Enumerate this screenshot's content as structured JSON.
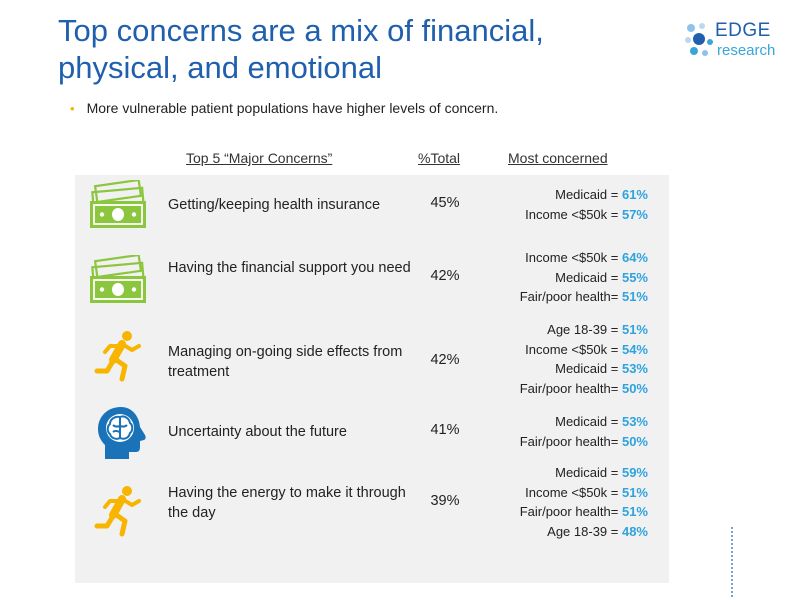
{
  "header": {
    "title_line1": "Top concerns are a mix of financial,",
    "title_line2": "physical, and emotional"
  },
  "logo": {
    "line1": "EDGE",
    "line2": "research"
  },
  "bullet": "More vulnerable patient populations have higher levels of concern.",
  "table": {
    "col_concerns": "Top 5 “Major Concerns”",
    "col_total": "%Total",
    "col_most": "Most concerned",
    "rows": [
      {
        "icon": "money-icon",
        "label": "Getting/keeping health insurance",
        "total": "45%",
        "most": [
          {
            "group": "Medicaid = ",
            "value": "61%"
          },
          {
            "group": "Income <$50k = ",
            "value": "57%"
          }
        ]
      },
      {
        "icon": "money-icon",
        "label": "Having the financial support you need",
        "total": "42%",
        "most": [
          {
            "group": "Income <$50k = ",
            "value": "64%"
          },
          {
            "group": "Medicaid = ",
            "value": "55%"
          },
          {
            "group": "Fair/poor health= ",
            "value": "51%"
          }
        ]
      },
      {
        "icon": "running-person-icon",
        "label": "Managing on-going side effects from treatment",
        "total": "42%",
        "most": [
          {
            "group": "Age 18-39 = ",
            "value": "51%"
          },
          {
            "group": "Income <$50k = ",
            "value": "54%"
          },
          {
            "group": "Medicaid = ",
            "value": "53%"
          },
          {
            "group": "Fair/poor health= ",
            "value": "50%"
          }
        ]
      },
      {
        "icon": "brain-head-icon",
        "label": "Uncertainty about the future",
        "total": "41%",
        "most": [
          {
            "group": "Medicaid = ",
            "value": "53%"
          },
          {
            "group": "Fair/poor health= ",
            "value": "50%"
          }
        ]
      },
      {
        "icon": "running-person-icon",
        "label": "Having the energy to make it through the day",
        "total": "39%",
        "most": [
          {
            "group": "Medicaid = ",
            "value": "59%"
          },
          {
            "group": "Income <$50k = ",
            "value": "51%"
          },
          {
            "group": "Fair/poor health= ",
            "value": "51%"
          },
          {
            "group": "Age 18-39 = ",
            "value": "48%"
          }
        ]
      }
    ]
  },
  "colors": {
    "title": "#1f5fad",
    "accent_value": "#2ea3dd",
    "money_icon": "#8cc63f",
    "runner_icon": "#f7b500",
    "head_icon": "#1a73b8",
    "panel_bg": "#f1f1f1"
  }
}
